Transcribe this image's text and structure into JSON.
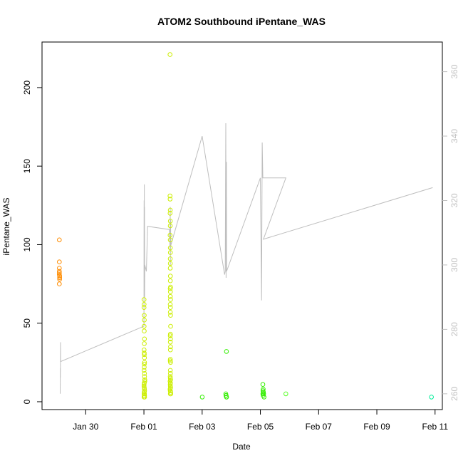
{
  "chart_data": {
    "type": "scatter",
    "title": "ATOM2 Southbound iPentane_WAS",
    "xlabel": "Date",
    "ylabel": "iPentane_WAS",
    "xlim": [
      "2017-01-28T12:00",
      "2017-02-11T06:00"
    ],
    "ylim": [
      -5,
      229
    ],
    "x_ticks": [
      {
        "label": "Jan 30",
        "date": "2017-01-30"
      },
      {
        "label": "Feb 01",
        "date": "2017-02-01"
      },
      {
        "label": "Feb 03",
        "date": "2017-02-03"
      },
      {
        "label": "Feb 05",
        "date": "2017-02-05"
      },
      {
        "label": "Feb 07",
        "date": "2017-02-07"
      },
      {
        "label": "Feb 09",
        "date": "2017-02-09"
      },
      {
        "label": "Feb 11",
        "date": "2017-02-11"
      }
    ],
    "y_ticks": [
      0,
      50,
      100,
      150,
      200
    ],
    "y2lim": [
      255.1,
      369.2
    ],
    "y2_ticks": [
      260,
      280,
      300,
      320,
      340,
      360
    ],
    "grid": false,
    "legend": "none",
    "colors": {
      "line": "#bebebe",
      "right_axis": "#c0c0c0",
      "axis": "#000000"
    },
    "series": [
      {
        "color": "#ff8c00",
        "points": [
          [
            "2017-01-29T02:15",
            103
          ],
          [
            "2017-01-29T02:15",
            89
          ],
          [
            "2017-01-29T02:15",
            85
          ],
          [
            "2017-01-29T02:15",
            83
          ],
          [
            "2017-01-29T02:15",
            82
          ],
          [
            "2017-01-29T02:15",
            81
          ],
          [
            "2017-01-29T02:30",
            80
          ],
          [
            "2017-01-29T02:30",
            79
          ],
          [
            "2017-01-29T02:15",
            75
          ],
          [
            "2017-01-29T02:30",
            78
          ]
        ]
      },
      {
        "color": "#ccee00",
        "points": [
          [
            "2017-02-01T00:05",
            65
          ],
          [
            "2017-02-01T00:10",
            62
          ],
          [
            "2017-02-01T00:05",
            60
          ],
          [
            "2017-02-01T00:15",
            55
          ],
          [
            "2017-02-01T00:20",
            52
          ],
          [
            "2017-02-01T00:10",
            48
          ],
          [
            "2017-02-01T00:15",
            45
          ],
          [
            "2017-02-01T00:25",
            40
          ],
          [
            "2017-02-01T00:20",
            37
          ],
          [
            "2017-02-01T00:10",
            33
          ],
          [
            "2017-02-01T00:15",
            31
          ],
          [
            "2017-02-01T00:20",
            30
          ],
          [
            "2017-02-01T00:25",
            28
          ],
          [
            "2017-02-01T00:30",
            25
          ],
          [
            "2017-02-01T00:20",
            24
          ],
          [
            "2017-02-01T00:15",
            22
          ],
          [
            "2017-02-01T00:10",
            20
          ],
          [
            "2017-02-01T00:25",
            18
          ],
          [
            "2017-02-01T00:30",
            16
          ],
          [
            "2017-02-01T00:40",
            14
          ],
          [
            "2017-02-01T00:45",
            13
          ],
          [
            "2017-02-01T00:20",
            12
          ],
          [
            "2017-02-01T00:10",
            11
          ],
          [
            "2017-02-01T00:05",
            10
          ],
          [
            "2017-02-01T00:15",
            9
          ],
          [
            "2017-02-01T00:25",
            8
          ],
          [
            "2017-02-01T00:35",
            7
          ],
          [
            "2017-02-01T00:15",
            6
          ],
          [
            "2017-02-01T00:25",
            5
          ],
          [
            "2017-02-01T00:10",
            5
          ],
          [
            "2017-02-01T00:20",
            4
          ],
          [
            "2017-02-01T00:30",
            4
          ],
          [
            "2017-02-01T00:35",
            3
          ],
          [
            "2017-02-01T00:05",
            3
          ],
          [
            "2017-02-01T21:30",
            221
          ],
          [
            "2017-02-01T21:30",
            131
          ],
          [
            "2017-02-01T21:35",
            129
          ],
          [
            "2017-02-01T21:40",
            122
          ],
          [
            "2017-02-01T21:35",
            120
          ],
          [
            "2017-02-01T21:45",
            115
          ],
          [
            "2017-02-01T21:40",
            112
          ],
          [
            "2017-02-01T21:35",
            106
          ],
          [
            "2017-02-01T21:40",
            103
          ],
          [
            "2017-02-01T21:45",
            98
          ],
          [
            "2017-02-01T21:50",
            95
          ],
          [
            "2017-02-01T21:40",
            91
          ],
          [
            "2017-02-01T21:45",
            88
          ],
          [
            "2017-02-01T21:40",
            85
          ],
          [
            "2017-02-01T21:50",
            80
          ],
          [
            "2017-02-01T21:45",
            77
          ],
          [
            "2017-02-01T21:55",
            73
          ],
          [
            "2017-02-01T21:40",
            72
          ],
          [
            "2017-02-01T21:50",
            70
          ],
          [
            "2017-02-01T21:45",
            67
          ],
          [
            "2017-02-01T21:55",
            65
          ],
          [
            "2017-02-01T21:40",
            62
          ],
          [
            "2017-02-01T21:50",
            60
          ],
          [
            "2017-02-01T21:45",
            57
          ],
          [
            "2017-02-01T21:55",
            55
          ],
          [
            "2017-02-01T22:00",
            48
          ],
          [
            "2017-02-01T21:50",
            43
          ],
          [
            "2017-02-01T21:40",
            42
          ],
          [
            "2017-02-01T21:55",
            40
          ],
          [
            "2017-02-01T21:45",
            38
          ],
          [
            "2017-02-01T21:55",
            35
          ],
          [
            "2017-02-01T21:50",
            33
          ],
          [
            "2017-02-01T21:45",
            27
          ],
          [
            "2017-02-01T21:40",
            26
          ],
          [
            "2017-02-01T21:55",
            25
          ],
          [
            "2017-02-01T21:45",
            20
          ],
          [
            "2017-02-01T21:50",
            18
          ],
          [
            "2017-02-01T21:40",
            16
          ],
          [
            "2017-02-01T21:45",
            15
          ],
          [
            "2017-02-01T21:55",
            14
          ],
          [
            "2017-02-01T21:35",
            13
          ],
          [
            "2017-02-01T21:50",
            12
          ],
          [
            "2017-02-01T21:40",
            11
          ],
          [
            "2017-02-01T21:45",
            10
          ],
          [
            "2017-02-01T21:55",
            9
          ],
          [
            "2017-02-01T21:35",
            8
          ],
          [
            "2017-02-01T21:50",
            7
          ],
          [
            "2017-02-01T21:40",
            7
          ],
          [
            "2017-02-01T22:00",
            6
          ],
          [
            "2017-02-01T22:05",
            5
          ],
          [
            "2017-02-01T21:45",
            5
          ]
        ]
      },
      {
        "color": "#33ee00",
        "points": [
          [
            "2017-02-03T00:05",
            3
          ],
          [
            "2017-02-03T20:00",
            32
          ],
          [
            "2017-02-03T19:30",
            5
          ],
          [
            "2017-02-03T19:45",
            4
          ],
          [
            "2017-02-03T19:40",
            4
          ],
          [
            "2017-02-03T20:00",
            3
          ],
          [
            "2017-02-03T20:10",
            3
          ],
          [
            "2017-02-05T02:00",
            11
          ],
          [
            "2017-02-05T02:20",
            8
          ],
          [
            "2017-02-05T02:10",
            7
          ],
          [
            "2017-02-05T02:30",
            6
          ],
          [
            "2017-02-05T02:00",
            5
          ],
          [
            "2017-02-05T02:40",
            5
          ],
          [
            "2017-02-05T02:20",
            4
          ],
          [
            "2017-02-05T03:00",
            3
          ]
        ]
      },
      {
        "color": "#55ff22",
        "points": [
          [
            "2017-02-05T21:00",
            5
          ]
        ]
      },
      {
        "color": "#00ee99",
        "points": [
          [
            "2017-02-10T21:00",
            3
          ]
        ]
      }
    ],
    "line_y2": [
      [
        "2017-01-29T03:00",
        260
      ],
      [
        "2017-01-29T03:05",
        268
      ],
      [
        "2017-01-29T03:10",
        265
      ],
      [
        "2017-01-29T03:15",
        276
      ],
      [
        "2017-01-29T03:20",
        270
      ],
      [
        "2017-02-01T00:00",
        281
      ],
      [
        "2017-02-01T00:05",
        310
      ],
      [
        "2017-02-01T00:10",
        320
      ],
      [
        "2017-02-01T00:15",
        290
      ],
      [
        "2017-02-01T00:20",
        325
      ],
      [
        "2017-02-01T00:25",
        295
      ],
      [
        "2017-02-01T00:30",
        318
      ],
      [
        "2017-02-01T00:35",
        290
      ],
      [
        "2017-02-01T00:45",
        300
      ],
      [
        "2017-02-01T02:00",
        298
      ],
      [
        "2017-02-01T03:00",
        312
      ],
      [
        "2017-02-01T21:00",
        311
      ],
      [
        "2017-02-01T21:30",
        305
      ],
      [
        "2017-02-01T21:40",
        318
      ],
      [
        "2017-02-01T21:50",
        300
      ],
      [
        "2017-02-01T22:00",
        314
      ],
      [
        "2017-02-01T22:05",
        306
      ],
      [
        "2017-02-03T00:00",
        340
      ],
      [
        "2017-02-03T18:30",
        297
      ],
      [
        "2017-02-03T19:00",
        298
      ],
      [
        "2017-02-03T19:30",
        344
      ],
      [
        "2017-02-03T19:45",
        296
      ],
      [
        "2017-02-03T20:00",
        332
      ],
      [
        "2017-02-03T20:10",
        298
      ],
      [
        "2017-02-05T00:00",
        327
      ],
      [
        "2017-02-05T01:00",
        289
      ],
      [
        "2017-02-05T01:30",
        338
      ],
      [
        "2017-02-05T02:00",
        327
      ],
      [
        "2017-02-05T21:00",
        327
      ],
      [
        "2017-02-05T02:30",
        308
      ],
      [
        "2017-02-10T22:00",
        324
      ]
    ]
  }
}
